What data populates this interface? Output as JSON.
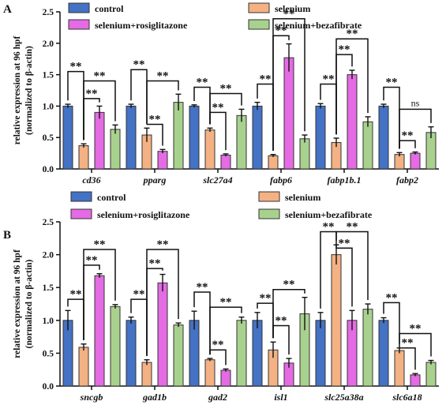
{
  "chart_data": [
    {
      "panel": "A",
      "type": "bar",
      "ylabel": "relative expression at 96 hpf",
      "ylabel2": "(normalized to β-actin)",
      "ylim": [
        0,
        2.5
      ],
      "yticks": [
        "0.0",
        "0.5",
        "1.0",
        "1.5",
        "2.0",
        "2.5"
      ],
      "categories": [
        "cd36",
        "pparg",
        "slc27a4",
        "fabp6",
        "fabp1b.1",
        "fabp2"
      ],
      "series": [
        {
          "name": "control",
          "color": "#4472C4",
          "values": [
            1.0,
            1.0,
            1.0,
            1.0,
            1.0,
            1.0
          ],
          "errors": [
            0.03,
            0.03,
            0.02,
            0.06,
            0.04,
            0.03
          ]
        },
        {
          "name": "selenium",
          "color": "#F4B183",
          "values": [
            0.37,
            0.54,
            0.62,
            0.21,
            0.42,
            0.23
          ],
          "errors": [
            0.03,
            0.11,
            0.03,
            0.02,
            0.07,
            0.03
          ]
        },
        {
          "name": "selenium+rosiglitazone",
          "color": "#E46BE4",
          "values": [
            0.9,
            0.28,
            0.22,
            1.77,
            1.5,
            0.25
          ],
          "errors": [
            0.1,
            0.03,
            0.02,
            0.22,
            0.07,
            0.02
          ]
        },
        {
          "name": "selenium+bezafibrate",
          "color": "#A9D18E",
          "values": [
            0.63,
            1.06,
            0.85,
            0.48,
            0.75,
            0.58
          ],
          "errors": [
            0.07,
            0.13,
            0.1,
            0.06,
            0.08,
            0.09
          ]
        }
      ],
      "annotations": [
        "**",
        "**",
        "**",
        "**",
        "**",
        "**",
        "**",
        "**",
        "**",
        "**",
        "**",
        "**",
        "**",
        "**",
        "**",
        "**",
        "**",
        "ns",
        "**"
      ],
      "legend": [
        "control",
        "selenium",
        "selenium+rosiglitazone",
        "selenium+bezafibrate"
      ]
    },
    {
      "panel": "B",
      "type": "bar",
      "ylabel": "relative expression at 96 hpf",
      "ylabel2": "(normalized to β-actin)",
      "ylim": [
        0,
        2.5
      ],
      "yticks": [
        "0.0",
        "0.5",
        "1.0",
        "1.5",
        "2.0",
        "2.5"
      ],
      "categories": [
        "sncgb",
        "gad1b",
        "gad2",
        "isl1",
        "slc25a38a",
        "slc6a18"
      ],
      "series": [
        {
          "name": "control",
          "color": "#4472C4",
          "values": [
            1.0,
            1.0,
            1.0,
            1.0,
            1.0,
            1.0
          ],
          "errors": [
            0.15,
            0.05,
            0.14,
            0.12,
            0.12,
            0.04
          ]
        },
        {
          "name": "selenium",
          "color": "#F4B183",
          "values": [
            0.59,
            0.36,
            0.4,
            0.55,
            2.0,
            0.54
          ],
          "errors": [
            0.05,
            0.04,
            0.02,
            0.12,
            0.15,
            0.04
          ]
        },
        {
          "name": "selenium+rosiglitazone",
          "color": "#E46BE4",
          "values": [
            1.68,
            1.57,
            0.24,
            0.35,
            1.0,
            0.17
          ],
          "errors": [
            0.03,
            0.13,
            0.02,
            0.07,
            0.15,
            0.02
          ]
        },
        {
          "name": "selenium+bezafibrate",
          "color": "#A9D18E",
          "values": [
            1.21,
            0.93,
            1.0,
            1.1,
            1.17,
            0.36
          ],
          "errors": [
            0.03,
            0.03,
            0.05,
            0.25,
            0.08,
            0.03
          ]
        }
      ],
      "annotations": [
        "**",
        "**",
        "**",
        "**",
        "**",
        "**",
        "**",
        "**",
        "**",
        "**",
        "**",
        "**",
        "**",
        "**",
        "**",
        "**",
        "**",
        "**"
      ],
      "legend": [
        "control",
        "selenium",
        "selenium+rosiglitazone",
        "selenium+bezafibrate"
      ]
    }
  ]
}
